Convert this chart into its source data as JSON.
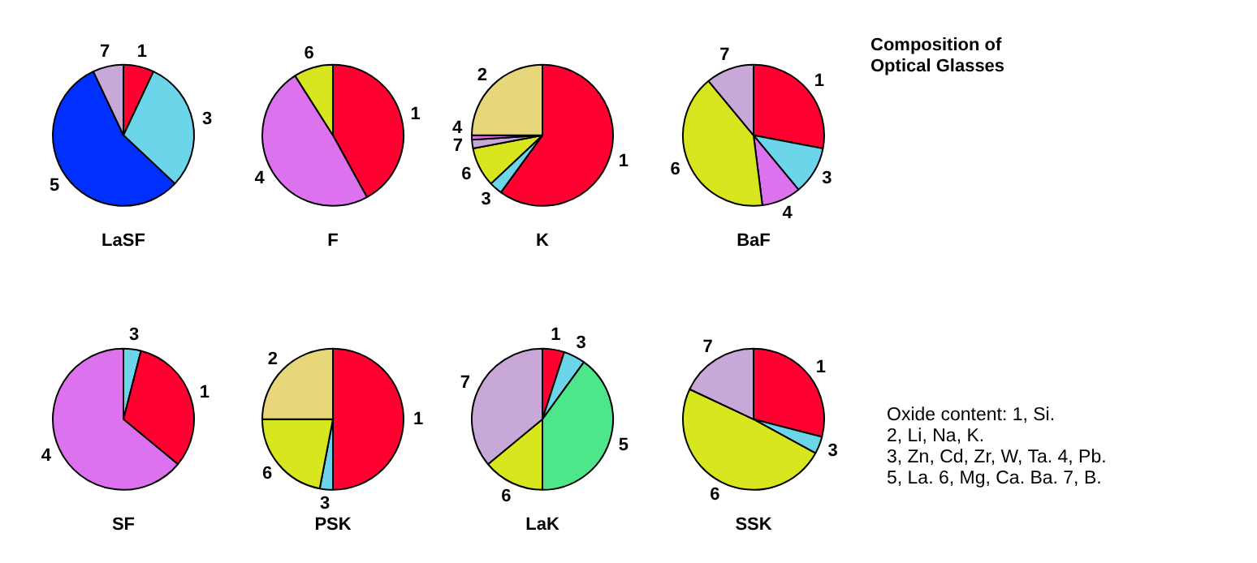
{
  "chart_data": [
    {
      "type": "pie",
      "title": "LaSF",
      "categories": [
        "1",
        "3",
        "5",
        "7"
      ],
      "values": [
        7,
        30,
        56,
        7
      ],
      "colors": [
        "#ff0030",
        "#6dd5ea",
        "#0030ff",
        "#c8a8d8"
      ]
    },
    {
      "type": "pie",
      "title": "F",
      "categories": [
        "1",
        "4",
        "6"
      ],
      "values": [
        42,
        49,
        9
      ],
      "colors": [
        "#ff0030",
        "#dd72ee",
        "#d8e620"
      ]
    },
    {
      "type": "pie",
      "title": "K",
      "categories": [
        "1",
        "3",
        "6",
        "7",
        "4",
        "2"
      ],
      "values": [
        60,
        3,
        9,
        2,
        1,
        25
      ],
      "colors": [
        "#ff0030",
        "#6dd5ea",
        "#d8e620",
        "#c8a8d8",
        "#dd72ee",
        "#e8d67a"
      ]
    },
    {
      "type": "pie",
      "title": "BaF",
      "categories": [
        "1",
        "3",
        "4",
        "6",
        "7"
      ],
      "values": [
        28,
        11,
        9,
        41,
        11
      ],
      "colors": [
        "#ff0030",
        "#6dd5ea",
        "#dd72ee",
        "#d8e620",
        "#c8a8d8"
      ]
    },
    {
      "type": "pie",
      "title": "SF",
      "categories": [
        "3",
        "1",
        "4"
      ],
      "values": [
        4,
        32,
        64
      ],
      "colors": [
        "#6dd5ea",
        "#ff0030",
        "#dd72ee"
      ]
    },
    {
      "type": "pie",
      "title": "PSK",
      "categories": [
        "1",
        "3",
        "6",
        "2"
      ],
      "values": [
        50,
        3,
        22,
        25
      ],
      "colors": [
        "#ff0030",
        "#6dd5ea",
        "#d8e620",
        "#e8d67a"
      ]
    },
    {
      "type": "pie",
      "title": "LaK",
      "categories": [
        "1",
        "3",
        "5",
        "6",
        "7"
      ],
      "values": [
        5,
        5,
        40,
        14,
        36
      ],
      "colors": [
        "#ff0030",
        "#6dd5ea",
        "#4de68a",
        "#d8e620",
        "#c8a8d8"
      ]
    },
    {
      "type": "pie",
      "title": "SSK",
      "categories": [
        "1",
        "3",
        "6",
        "7"
      ],
      "values": [
        29,
        4,
        49,
        18
      ],
      "colors": [
        "#ff0030",
        "#6dd5ea",
        "#d8e620",
        "#c8a8d8"
      ]
    },
    {
      "type": "other",
      "title": "Composition of Optical Glasses",
      "annotations": [
        "Oxide content: 1, Si.",
        "2, Li, Na, K.",
        "3, Zn, Cd, Zr, W, Ta. 4, Pb.",
        "5, La. 6, Mg, Ca. Ba. 7, B."
      ]
    }
  ]
}
